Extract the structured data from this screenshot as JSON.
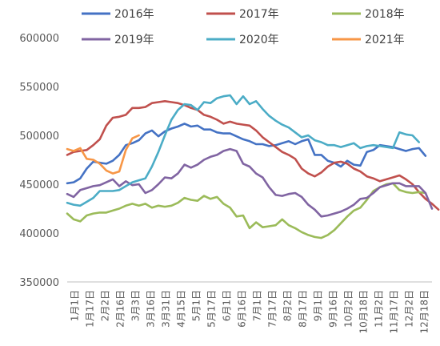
{
  "chart_data": {
    "type": "line",
    "title": "",
    "xlabel": "",
    "ylabel": "",
    "ylim": [
      350000,
      600000
    ],
    "y_ticks": [
      350000,
      400000,
      450000,
      500000,
      550000,
      600000
    ],
    "grid": false,
    "legend_position": "top",
    "x_tick_labels": [
      "1月1日",
      "1月17日",
      "2月2日",
      "2月16日",
      "3月3日",
      "3月16日",
      "3月31日",
      "4月15日",
      "5月1日",
      "5月17日",
      "6月1日",
      "6月16日",
      "7月1日",
      "7月17日",
      "8月2日",
      "8月17日",
      "9月1日",
      "9月16日",
      "10月2日",
      "10月18日",
      "11月2日",
      "11月17日",
      "12月2日",
      "12月18日"
    ],
    "series": [
      {
        "name": "2016年",
        "color": "#4472C4",
        "values": [
          451000,
          452000,
          456000,
          466000,
          473000,
          472000,
          471000,
          474000,
          480000,
          490000,
          492000,
          495000,
          502000,
          505000,
          499000,
          504000,
          507000,
          509000,
          512000,
          509000,
          510000,
          506000,
          506000,
          503000,
          502000,
          502000,
          499000,
          496000,
          494000,
          491000,
          491000,
          489000,
          490000,
          492000,
          494000,
          491000,
          494000,
          496000,
          480000,
          480000,
          474000,
          472000,
          468000,
          474000,
          470000,
          469000,
          483000,
          485000,
          490000,
          489000,
          488000,
          486000,
          484000,
          486000,
          487000,
          479000
        ]
      },
      {
        "name": "2017年",
        "color": "#C0504D",
        "values": [
          480000,
          483000,
          484000,
          485000,
          490000,
          496000,
          510000,
          518000,
          519000,
          521000,
          528000,
          528000,
          529000,
          533000,
          534000,
          535000,
          534000,
          533000,
          531000,
          528000,
          526000,
          521000,
          519000,
          516000,
          512000,
          514000,
          512000,
          511000,
          510000,
          505000,
          498000,
          493000,
          488000,
          483000,
          480000,
          476000,
          466000,
          461000,
          458000,
          462000,
          468000,
          472000,
          473000,
          471000,
          466000,
          463000,
          458000,
          456000,
          453000,
          455000,
          457000,
          459000,
          455000,
          450000,
          442000,
          435000,
          430000,
          424000
        ]
      },
      {
        "name": "2018年",
        "color": "#9BBB59",
        "values": [
          420000,
          414000,
          412000,
          418000,
          420000,
          421000,
          421000,
          423000,
          425000,
          428000,
          430000,
          428000,
          430000,
          426000,
          428000,
          427000,
          428000,
          431000,
          436000,
          434000,
          433000,
          438000,
          435000,
          437000,
          430000,
          426000,
          417000,
          418000,
          405000,
          411000,
          406000,
          407000,
          408000,
          414000,
          408000,
          405000,
          401000,
          398000,
          396000,
          395000,
          398000,
          403000,
          410000,
          417000,
          423000,
          426000,
          434000,
          443000,
          447000,
          450000,
          451000,
          444000,
          442000,
          441000,
          442000,
          441000
        ]
      },
      {
        "name": "2019年",
        "color": "#8064A2",
        "values": [
          440000,
          437000,
          444000,
          446000,
          448000,
          449000,
          452000,
          455000,
          448000,
          453000,
          449000,
          450000,
          441000,
          444000,
          450000,
          457000,
          456000,
          461000,
          470000,
          467000,
          470000,
          475000,
          478000,
          480000,
          484000,
          486000,
          484000,
          471000,
          468000,
          461000,
          457000,
          447000,
          439000,
          438000,
          440000,
          441000,
          437000,
          429000,
          424000,
          417000,
          418000,
          420000,
          422000,
          425000,
          429000,
          435000,
          436000,
          441000,
          447000,
          449000,
          451000,
          451000,
          448000,
          448000,
          448000,
          441000,
          425000
        ]
      },
      {
        "name": "2020年",
        "color": "#4BACC6",
        "values": [
          431000,
          429000,
          428000,
          432000,
          436000,
          443000,
          443000,
          443000,
          444000,
          448000,
          452000,
          454000,
          456000,
          468000,
          483000,
          500000,
          516000,
          526000,
          532000,
          531000,
          526000,
          534000,
          533000,
          538000,
          540000,
          541000,
          532000,
          540000,
          532000,
          535000,
          527000,
          520000,
          515000,
          511000,
          508000,
          503000,
          498000,
          500000,
          495000,
          493000,
          490000,
          490000,
          488000,
          490000,
          492000,
          487000,
          489000,
          490000,
          489000,
          488000,
          487000,
          503000,
          501000,
          500000,
          493000
        ]
      },
      {
        "name": "2021年",
        "color": "#F79646",
        "values": [
          486000,
          484000,
          487000,
          476000,
          475000,
          471000,
          464000,
          461000,
          463000,
          485000,
          497000,
          500000
        ]
      }
    ]
  }
}
